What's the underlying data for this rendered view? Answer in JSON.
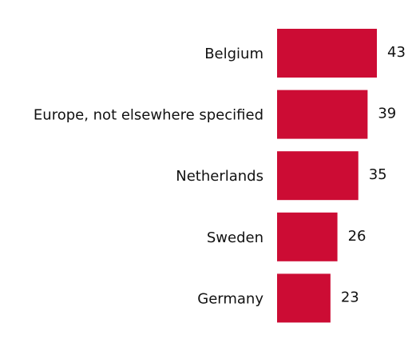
{
  "chart_data": {
    "type": "bar",
    "categories": [
      "Belgium",
      "Europe, not elsewhere specified",
      "Netherlands",
      "Sweden",
      "Germany"
    ],
    "values": [
      43,
      39,
      35,
      26,
      23
    ],
    "color": "#cc0c34"
  }
}
